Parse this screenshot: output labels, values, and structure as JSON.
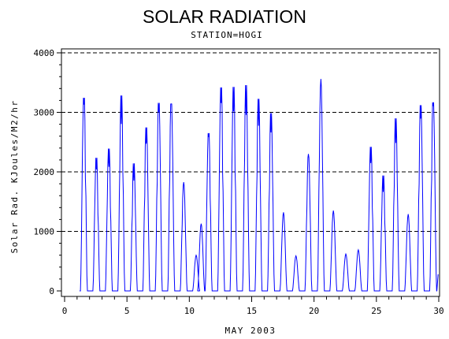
{
  "chart_data": {
    "type": "line",
    "title": "SOLAR RADIATION",
    "subtitle": "STATION=HOGI",
    "xlabel": "MAY 2003",
    "ylabel": "Solar Rad. KJoules/M2/hr",
    "xlim": [
      0,
      30
    ],
    "ylim": [
      0,
      4000
    ],
    "x_ticks": [
      "0",
      "5",
      "10",
      "15",
      "20",
      "25",
      "30"
    ],
    "y_ticks": [
      "0",
      "1000",
      "2000",
      "3000",
      "4000"
    ],
    "grid": "horizontal-dashed",
    "line_color": "#0000ff",
    "series": [
      {
        "daily_peaks": [
          {
            "day": 1,
            "peak": 3380
          },
          {
            "day": 2,
            "peak": 2330
          },
          {
            "day": 3,
            "peak": 2490
          },
          {
            "day": 4,
            "peak": 3420
          },
          {
            "day": 5,
            "peak": 2230
          },
          {
            "day": 6,
            "peak": 2860
          },
          {
            "day": 7,
            "peak": 3290
          },
          {
            "day": 8,
            "peak": 3270
          },
          {
            "day": 9,
            "peak": 1840
          },
          {
            "day": 10,
            "peak": 600
          },
          {
            "day": 10.4,
            "peak": 1130
          },
          {
            "day": 11,
            "peak": 2760
          },
          {
            "day": 12,
            "peak": 3560
          },
          {
            "day": 13,
            "peak": 3570
          },
          {
            "day": 14,
            "peak": 3600
          },
          {
            "day": 15,
            "peak": 3360
          },
          {
            "day": 16,
            "peak": 3110
          },
          {
            "day": 17,
            "peak": 1320
          },
          {
            "day": 18,
            "peak": 590
          },
          {
            "day": 19,
            "peak": 2330
          },
          {
            "day": 20,
            "peak": 3560
          },
          {
            "day": 21,
            "peak": 1350
          },
          {
            "day": 22,
            "peak": 620
          },
          {
            "day": 23,
            "peak": 690
          },
          {
            "day": 24,
            "peak": 2520
          },
          {
            "day": 25,
            "peak": 2020
          },
          {
            "day": 26,
            "peak": 3020
          },
          {
            "day": 27,
            "peak": 1290
          },
          {
            "day": 28,
            "peak": 3250
          },
          {
            "day": 29,
            "peak": 3300
          }
        ],
        "end": {
          "x": 29.95,
          "y": 280
        }
      }
    ]
  }
}
